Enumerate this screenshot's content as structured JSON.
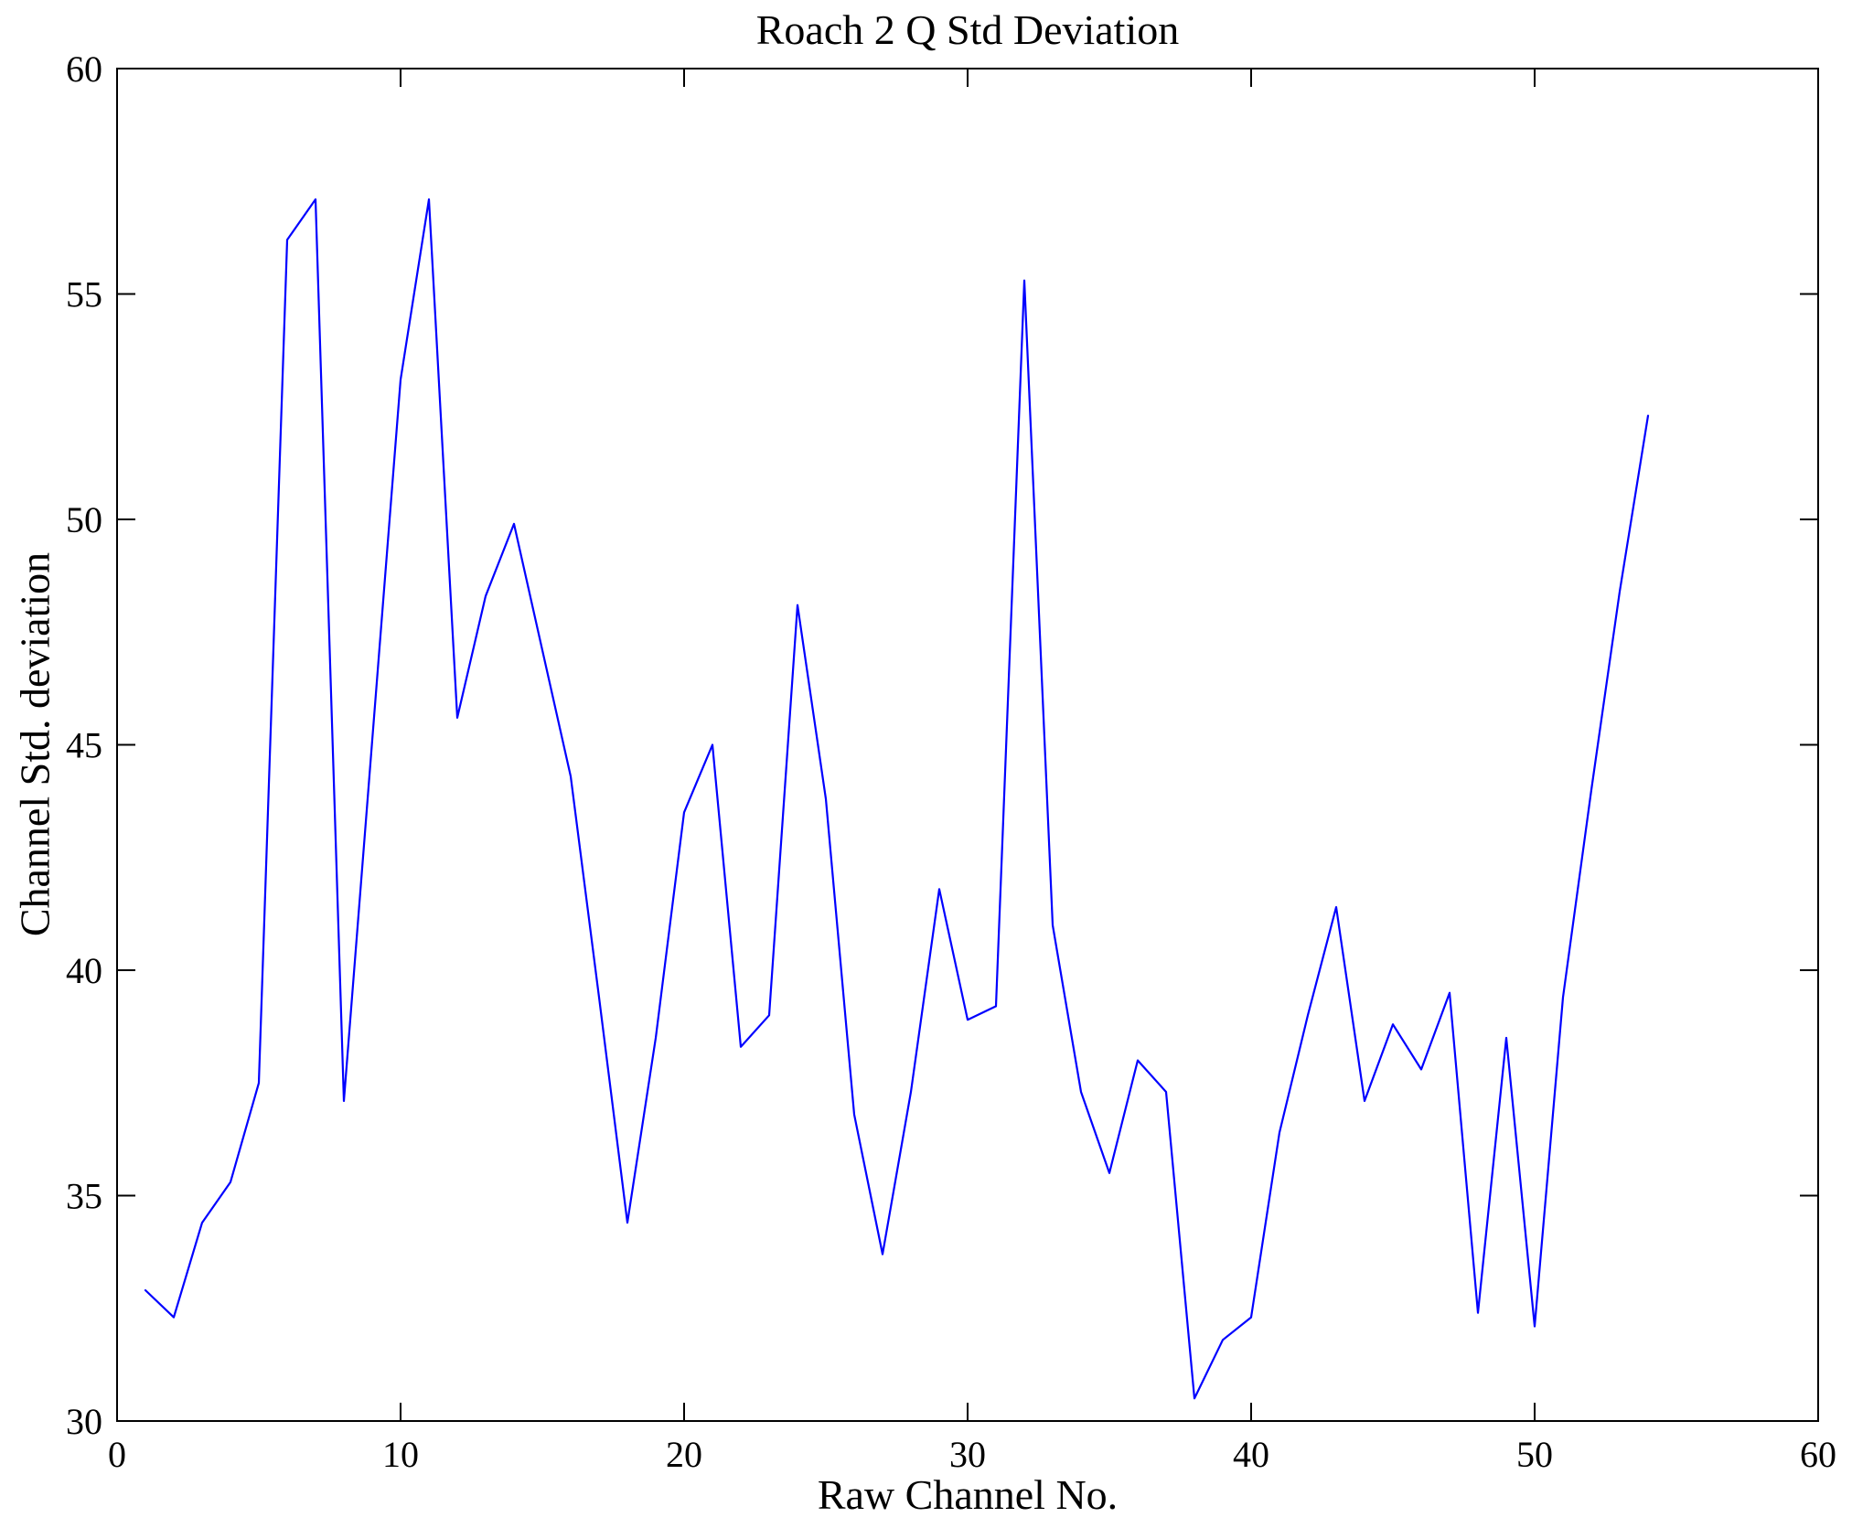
{
  "title": "Roach 2 Q Std Deviation",
  "chart_data": {
    "type": "line",
    "title": "Roach 2 Q Std Deviation",
    "xlabel": "Raw Channel No.",
    "ylabel": "Channel Std. deviation",
    "xlim": [
      0,
      60
    ],
    "ylim": [
      30,
      60
    ],
    "x_ticks": [
      0,
      10,
      20,
      30,
      40,
      50,
      60
    ],
    "y_ticks": [
      30,
      35,
      40,
      45,
      50,
      55,
      60
    ],
    "grid": false,
    "legend": null,
    "line_color": "#0000FF",
    "axis_color": "#000000",
    "x": [
      1,
      2,
      3,
      4,
      5,
      6,
      7,
      8,
      9,
      10,
      11,
      12,
      13,
      14,
      15,
      16,
      17,
      18,
      19,
      20,
      21,
      22,
      23,
      24,
      25,
      26,
      27,
      28,
      29,
      30,
      31,
      32,
      33,
      34,
      35,
      36,
      37,
      38,
      39,
      40,
      41,
      42,
      43,
      44,
      45,
      46,
      47,
      48,
      49,
      50,
      51,
      52,
      53,
      54
    ],
    "series": [
      {
        "name": "Channel Std. deviation",
        "values": [
          32.9,
          32.3,
          34.4,
          35.3,
          37.5,
          56.2,
          57.1,
          37.1,
          45.1,
          53.1,
          57.1,
          45.6,
          48.3,
          49.9,
          47.1,
          44.3,
          39.4,
          34.4,
          38.5,
          43.5,
          45.0,
          38.3,
          39.0,
          48.1,
          43.8,
          36.8,
          33.7,
          37.3,
          41.8,
          38.9,
          39.2,
          55.3,
          41.0,
          37.3,
          35.5,
          38.0,
          37.3,
          30.5,
          31.8,
          32.3,
          36.4,
          39.0,
          41.4,
          37.1,
          38.8,
          37.8,
          39.5,
          32.4,
          38.5,
          32.1,
          39.4,
          44.0,
          48.4,
          52.3
        ]
      }
    ]
  }
}
